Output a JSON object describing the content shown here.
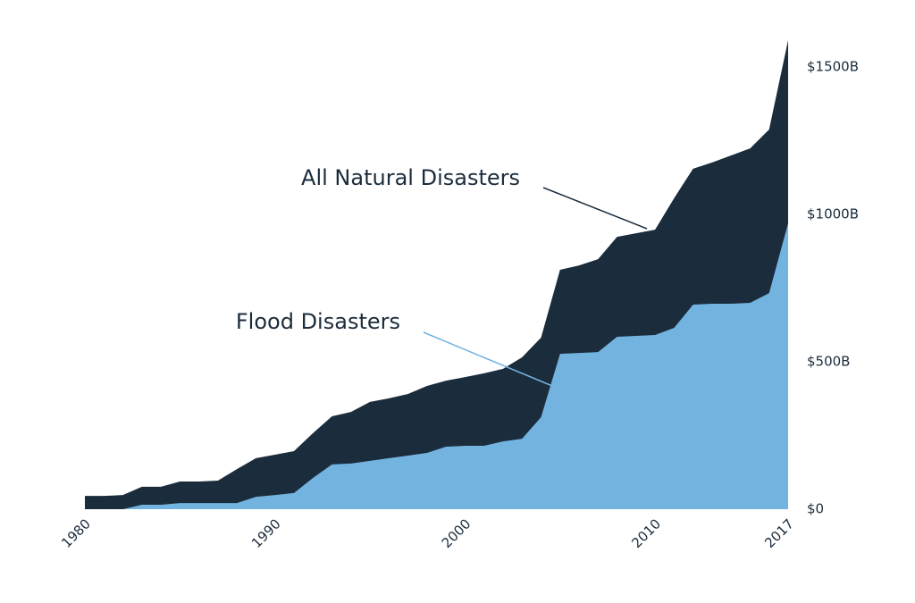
{
  "chart_data": {
    "type": "area",
    "x": [
      1980,
      1981,
      1982,
      1983,
      1984,
      1985,
      1986,
      1987,
      1988,
      1989,
      1990,
      1991,
      1992,
      1993,
      1994,
      1995,
      1996,
      1997,
      1998,
      1999,
      2000,
      2001,
      2002,
      2003,
      2004,
      2005,
      2006,
      2007,
      2008,
      2009,
      2010,
      2011,
      2012,
      2013,
      2014,
      2015,
      2016,
      2017
    ],
    "series": [
      {
        "name": "All Natural Disasters",
        "color": "#1b2c3c",
        "values": [
          45,
          45,
          48,
          76,
          76,
          94,
          94,
          97,
          136,
          173,
          185,
          197,
          258,
          315,
          330,
          364,
          376,
          391,
          418,
          436,
          448,
          461,
          476,
          515,
          582,
          812,
          827,
          848,
          924,
          936,
          948,
          1055,
          1155,
          1176,
          1200,
          1224,
          1288,
          1591
        ]
      },
      {
        "name": "Flood Disasters",
        "color": "#73b3e0",
        "values": [
          0,
          0,
          0,
          15,
          15,
          21,
          21,
          21,
          21,
          42,
          48,
          55,
          106,
          152,
          155,
          164,
          173,
          182,
          191,
          212,
          215,
          215,
          230,
          239,
          312,
          527,
          530,
          533,
          585,
          588,
          591,
          615,
          694,
          697,
          697,
          700,
          733,
          970
        ]
      }
    ],
    "xlim": [
      1980,
      2017
    ],
    "xticks": [
      1980,
      1990,
      2000,
      2010,
      2017
    ],
    "ylim": [
      0,
      1600
    ],
    "yticks": [
      {
        "value": 0,
        "label": "$0"
      },
      {
        "value": 500,
        "label": "$500B"
      },
      {
        "value": 1000,
        "label": "$1000B"
      },
      {
        "value": 1500,
        "label": "$1500B"
      }
    ]
  }
}
